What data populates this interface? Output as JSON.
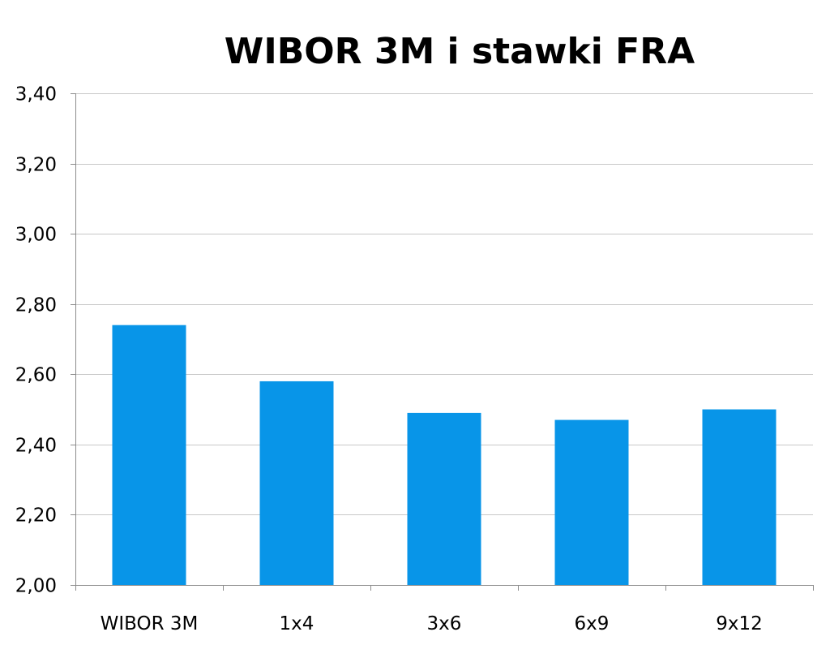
{
  "chart_data": {
    "type": "bar",
    "title": "WIBOR 3M i stawki FRA",
    "categories": [
      "WIBOR 3M",
      "1x4",
      "3x6",
      "6x9",
      "9x12"
    ],
    "values": [
      2.74,
      2.58,
      2.49,
      2.47,
      2.5
    ],
    "ylim": [
      2.0,
      3.4
    ],
    "y_ticks": [
      "2,00",
      "2,20",
      "2,40",
      "2,60",
      "2,80",
      "3,00",
      "3,20",
      "3,40"
    ],
    "y_tick_values": [
      2.0,
      2.2,
      2.4,
      2.6,
      2.8,
      3.0,
      3.2,
      3.4
    ],
    "xlabel": "",
    "ylabel": "",
    "grid": true,
    "legend": "none",
    "bar_color": "#0895e8"
  }
}
